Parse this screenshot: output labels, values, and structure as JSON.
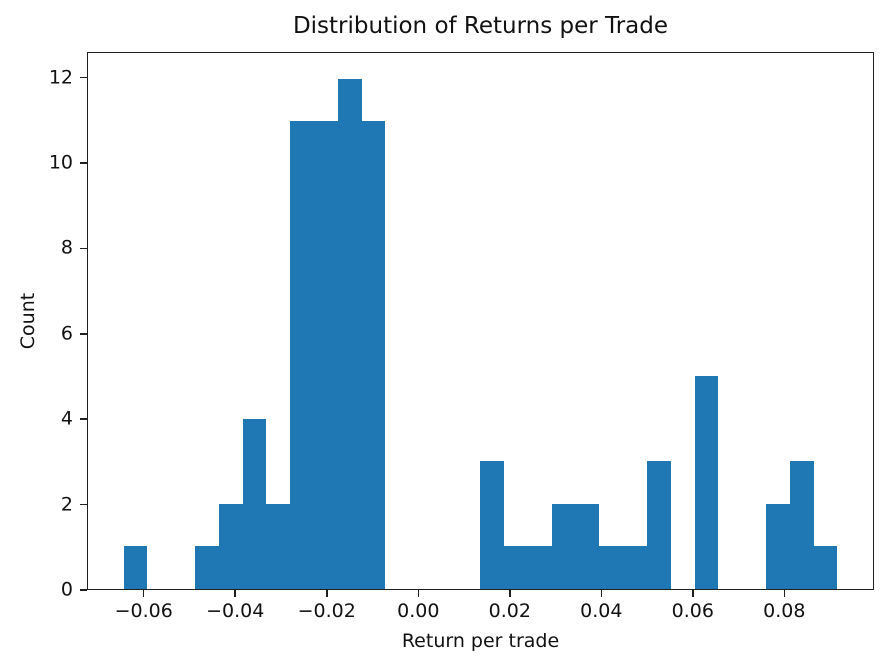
{
  "chart_data": {
    "type": "bar",
    "subtype": "histogram",
    "title": "Distribution of Returns per Trade",
    "xlabel": "Return per trade",
    "ylabel": "Count",
    "bar_color": "#1f77b4",
    "background_color": "#ffffff",
    "grid": false,
    "legend_position": "none",
    "bin_start": -0.0646,
    "bin_width": 0.005213,
    "counts": [
      1,
      0,
      0,
      1,
      2,
      4,
      2,
      11,
      11,
      12,
      11,
      0,
      0,
      0,
      0,
      3,
      1,
      1,
      2,
      2,
      1,
      1,
      3,
      0,
      5,
      0,
      0,
      2,
      3,
      1
    ],
    "xlim": [
      -0.0724,
      0.0996
    ],
    "ylim": [
      0,
      12.6
    ],
    "xticks": [
      -0.06,
      -0.04,
      -0.02,
      0.0,
      0.02,
      0.04,
      0.06,
      0.08
    ],
    "xtick_labels": [
      "−0.06",
      "−0.04",
      "−0.02",
      "0.00",
      "0.02",
      "0.04",
      "0.06",
      "0.08"
    ],
    "yticks": [
      0,
      2,
      4,
      6,
      8,
      10,
      12
    ],
    "ytick_labels": [
      "0",
      "2",
      "4",
      "6",
      "8",
      "10",
      "12"
    ]
  }
}
